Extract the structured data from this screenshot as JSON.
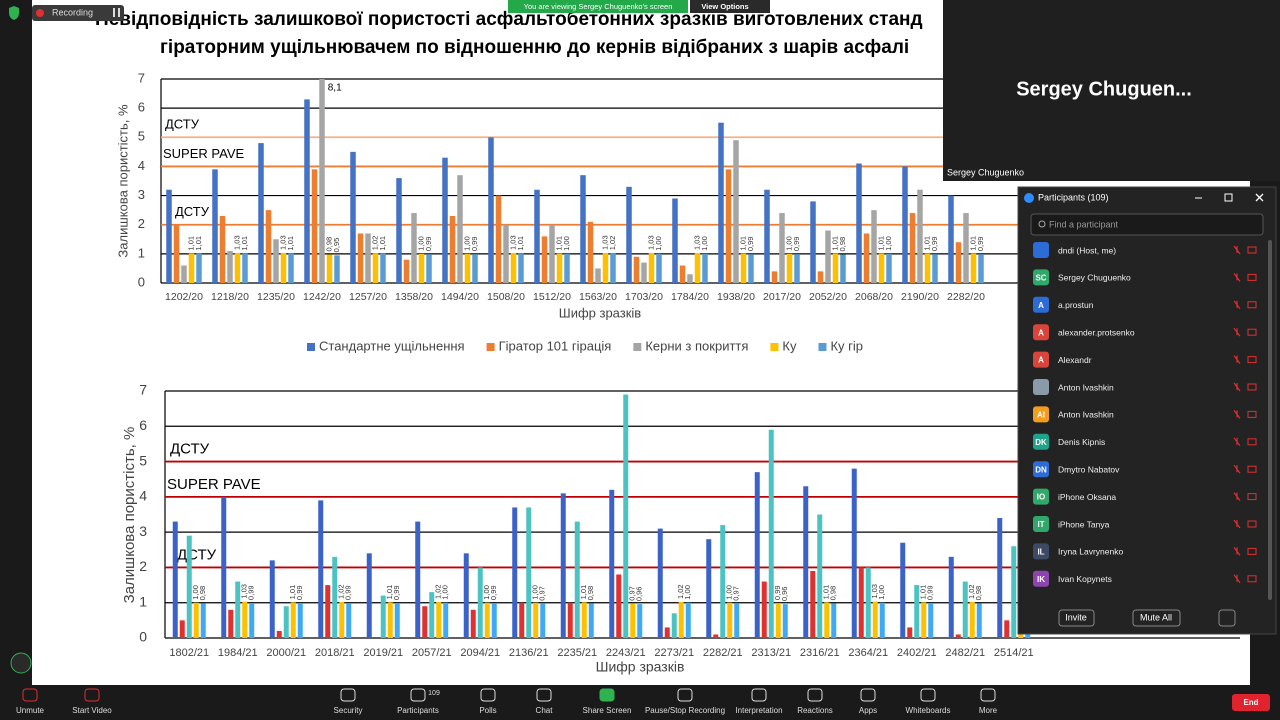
{
  "zoom": {
    "recording": "Recording",
    "banner": "You are viewing Sergey Chuguenko's screen",
    "view_options": "View Options",
    "video_tile": {
      "name_large": "Sergey  Chuguen...",
      "name_small": "Sergey Chuguenko"
    },
    "participants_panel": {
      "title": "Participants (109)",
      "search_placeholder": "Find a participant",
      "participants": [
        {
          "initials": null,
          "name": "dndi (Host, me)",
          "color": "#2d6bd6"
        },
        {
          "initials": "SC",
          "name": "Sergey Chuguenko",
          "color": "#2fa86a"
        },
        {
          "initials": "A",
          "name": "a.prostun",
          "color": "#2d6bd6"
        },
        {
          "initials": "A",
          "name": "alexander.protsenko",
          "color": "#d9453b"
        },
        {
          "initials": "A",
          "name": "Alexandr",
          "color": "#d9453b"
        },
        {
          "initials": null,
          "name": "Anton Ivashkin",
          "color": "#8a9aa8"
        },
        {
          "initials": "AI",
          "name": "Anton Ivashkin",
          "color": "#f29d1f"
        },
        {
          "initials": "DK",
          "name": "Denis Kipnis",
          "color": "#1fa38a"
        },
        {
          "initials": "DN",
          "name": "Dmytro Nabatov",
          "color": "#2d6bd6"
        },
        {
          "initials": "IO",
          "name": "iPhone Oksana",
          "color": "#2fa86a"
        },
        {
          "initials": "IT",
          "name": "iPhone Tanya",
          "color": "#2fa86a"
        },
        {
          "initials": "IL",
          "name": "Iryna Lavrynenko",
          "color": "#3d4a66"
        },
        {
          "initials": "IK",
          "name": "Ivan Kopynets",
          "color": "#8e44ad"
        }
      ],
      "invite": "Invite",
      "mute_all": "Mute All"
    },
    "toolbar": [
      {
        "label": "Unmute"
      },
      {
        "label": "Start Video"
      },
      {
        "label": "Security"
      },
      {
        "label": "Participants",
        "count": 109
      },
      {
        "label": "Polls"
      },
      {
        "label": "Chat"
      },
      {
        "label": "Share Screen"
      },
      {
        "label": "Pause/Stop Recording"
      },
      {
        "label": "Interpretation"
      },
      {
        "label": "Reactions"
      },
      {
        "label": "Apps"
      },
      {
        "label": "Whiteboards"
      },
      {
        "label": "More"
      }
    ],
    "end": "End"
  },
  "slide": {
    "title_lines": [
      "Невідповідність залишкової пористості асфальтобетонних зразків виготовлених станд",
      "гіраторним ущільнювачем по відношенню до кернів відібраних з шарів асфалі"
    ]
  },
  "chart_data": [
    {
      "type": "bar",
      "y_label": "Залишкова пористість, %",
      "x_label": "Шифр зразків",
      "categories": [
        "1202/20",
        "1218/20",
        "1235/20",
        "1242/20",
        "1257/20",
        "1358/20",
        "1494/20",
        "1508/20",
        "1512/20",
        "1563/20",
        "1703/20",
        "1784/20",
        "1938/20",
        "2017/20",
        "2052/20",
        "2068/20",
        "2190/20",
        "2282/20"
      ],
      "series": [
        {
          "name": "Стандартне ущільнення",
          "color": "#4472c4",
          "values": [
            3.2,
            3.9,
            4.8,
            6.3,
            4.5,
            3.6,
            4.3,
            5.0,
            3.2,
            3.7,
            3.3,
            2.9,
            5.5,
            3.2,
            2.8,
            4.1,
            4.0,
            3.0
          ]
        },
        {
          "name": "Гіратор 101 гірація",
          "color": "#ed7d31",
          "values": [
            2.0,
            2.3,
            2.5,
            3.9,
            1.7,
            0.8,
            2.3,
            3.0,
            1.6,
            2.1,
            0.9,
            0.6,
            3.9,
            0.4,
            0.4,
            1.7,
            2.4,
            1.4
          ]
        },
        {
          "name": "Керни з покриття",
          "color": "#a5a5a5",
          "values": [
            0.6,
            1.1,
            1.5,
            8.1,
            1.7,
            2.4,
            3.7,
            2.0,
            2.0,
            0.5,
            0.7,
            0.3,
            4.9,
            2.4,
            1.8,
            2.5,
            3.2,
            2.4
          ],
          "value_labels": [
            null,
            null,
            null,
            "8,1",
            null,
            null,
            null,
            null,
            null,
            null,
            null,
            null,
            null,
            null,
            null,
            null,
            null,
            null
          ]
        },
        {
          "name": "Ку",
          "color": "#ffc000",
          "values": [
            1.01,
            1.03,
            1.03,
            0.98,
            1.02,
            1.0,
            1.0,
            1.03,
            1.01,
            1.03,
            1.03,
            1.03,
            1.01,
            1.0,
            1.01,
            1.01,
            1.01,
            1.01
          ],
          "value_labels": [
            "1,01",
            "1,03",
            "1,03",
            "0,98",
            "1,02",
            "1,00",
            "1,00",
            "1,03",
            "1,01",
            "1,03",
            "1,03",
            "1,03",
            "1,01",
            "1,00",
            "1,01",
            "1,01",
            "1,01",
            "1,01"
          ]
        },
        {
          "name": "Ку гір",
          "color": "#5b9bd5",
          "values": [
            1.01,
            1.01,
            1.01,
            0.95,
            1.01,
            0.99,
            0.99,
            1.01,
            1.0,
            1.02,
            1.0,
            1.0,
            0.99,
            0.99,
            0.98,
            1.0,
            0.99,
            0.99
          ],
          "value_labels": [
            "1,01",
            "1,01",
            "1,01",
            "0,95",
            "1,01",
            "0,99",
            "0,99",
            "1,01",
            "1,00",
            "1,02",
            "1,00",
            "1,00",
            "0,99",
            "0,99",
            "0,98",
            "1,00",
            "0,99",
            "0,99"
          ]
        }
      ],
      "ylim": [
        0,
        7
      ],
      "yticks": [
        0,
        1,
        2,
        3,
        4,
        5,
        6,
        7
      ],
      "grid": true,
      "legend": "bottom",
      "reference_lines": [
        {
          "label": "ДСТУ",
          "value": 5,
          "color": "#f4b183"
        },
        {
          "label": "SUPER PAVE",
          "value": 4,
          "color": "#ed7d31"
        },
        {
          "label": "ДСТУ",
          "value": 2,
          "color": "#ed7d31"
        }
      ]
    },
    {
      "type": "bar",
      "y_label": "Залишкова пористість, %",
      "x_label": "Шифр зразків",
      "categories": [
        "1802/21",
        "1984/21",
        "2000/21",
        "2018/21",
        "2019/21",
        "2057/21",
        "2094/21",
        "2136/21",
        "2235/21",
        "2243/21",
        "2273/21",
        "2282/21",
        "2313/21",
        "2316/21",
        "2364/21",
        "2402/21",
        "2482/21",
        "2514/21"
      ],
      "series": [
        {
          "color": "#3a62c9",
          "values": [
            3.3,
            4.0,
            2.2,
            3.9,
            2.4,
            3.3,
            2.4,
            3.7,
            4.1,
            4.2,
            3.1,
            2.8,
            4.7,
            4.3,
            4.8,
            2.7,
            2.3,
            3.4
          ]
        },
        {
          "color": "#e0302f",
          "values": [
            0.5,
            0.8,
            0.2,
            1.5,
            0,
            0.9,
            0.8,
            1.0,
            1.0,
            1.8,
            0.3,
            0.1,
            1.6,
            1.9,
            2.0,
            0.3,
            0.1,
            0.5
          ]
        },
        {
          "color": "#4bc3c3",
          "values": [
            2.9,
            1.6,
            0.9,
            2.3,
            1.2,
            1.3,
            2.0,
            3.7,
            3.3,
            6.9,
            0.7,
            3.2,
            5.9,
            3.5,
            2.0,
            1.5,
            1.6,
            2.6
          ]
        },
        {
          "color": "#ffc000",
          "values": [
            1.0,
            1.03,
            1.01,
            1.02,
            1.01,
            1.02,
            1.0,
            1.0,
            1.01,
            0.97,
            1.02,
            1.0,
            0.99,
            1.01,
            1.03,
            1.01,
            1.02,
            1.01
          ],
          "value_labels": [
            "1,00",
            "1,03",
            "1,01",
            "1,02",
            "1,01",
            "1,02",
            "1,00",
            "1,00",
            "1,01",
            "0,97",
            "1,02",
            "1,00",
            "0,99",
            "1,01",
            "1,03",
            "1,01",
            "1,02",
            "1,01"
          ]
        },
        {
          "color": "#3fa9f5",
          "values": [
            0.98,
            0.99,
            0.99,
            0.99,
            0.99,
            1.0,
            0.99,
            0.97,
            0.98,
            0.96,
            1.0,
            0.97,
            0.96,
            0.98,
            1.0,
            0.99,
            0.98,
            0.99
          ],
          "value_labels": [
            "0,98",
            "0,99",
            "0,99",
            "0,99",
            "0,99",
            "1,00",
            "0,99",
            "0,97",
            "0,98",
            "0,96",
            "1,00",
            "0,97",
            "0,96",
            "0,98",
            "1,00",
            "0,99",
            "0,98",
            "0,99"
          ]
        }
      ],
      "ylim": [
        0,
        7
      ],
      "yticks": [
        0,
        1,
        2,
        3,
        4,
        5,
        6,
        7
      ],
      "grid": true,
      "reference_lines": [
        {
          "label": "ДСТУ",
          "value": 5,
          "color": "#c00000"
        },
        {
          "label": "SUPER PAVE",
          "value": 4,
          "color": "#c00000"
        },
        {
          "label": "ДСТУ",
          "value": 2,
          "color": "#c00000"
        }
      ]
    }
  ]
}
